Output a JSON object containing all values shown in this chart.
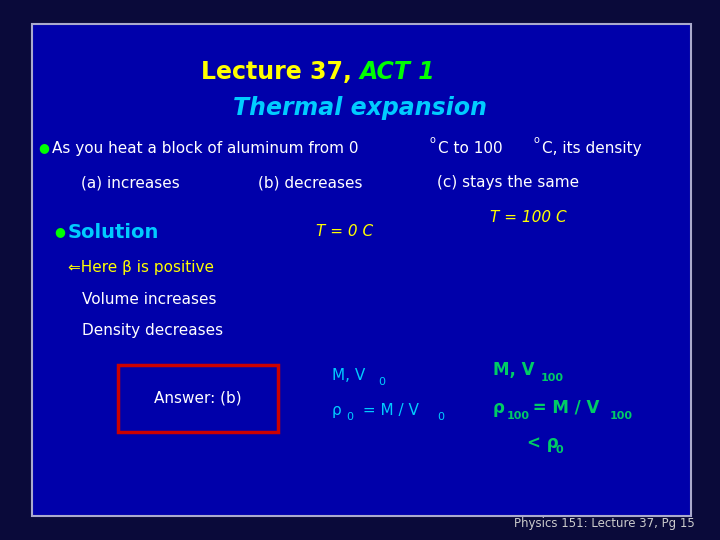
{
  "bg_outer": "#0a0a3a",
  "bg_inner": "#0000aa",
  "border_color": "#aaaacc",
  "title_color1": "#ffff00",
  "title_color2": "#00ff00",
  "title_color3": "#00ccff",
  "bullet_color": "#00ff00",
  "body_color": "#ffffff",
  "cyan_color": "#00ccff",
  "yellow_color": "#ffff00",
  "green_color": "#00cc66",
  "answer_box_color": "#cc0000",
  "footer_color": "#cccccc",
  "footer_text": "Physics 151: Lecture 37, Pg 15"
}
